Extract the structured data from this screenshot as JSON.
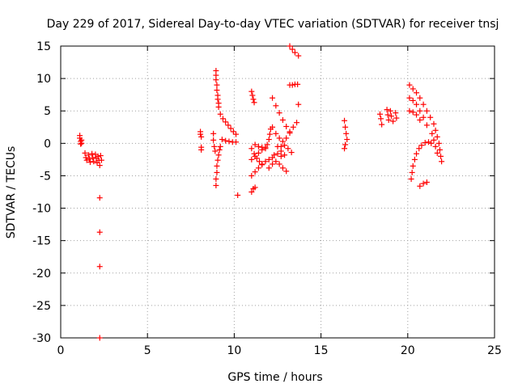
{
  "chart_data": {
    "type": "scatter",
    "title": "Day 229 of 2017, Sidereal Day-to-day VTEC variation (SDTVAR) for receiver tnsj",
    "xlabel": "GPS time / hours",
    "ylabel": "SDTVAR / TECUs",
    "xlim": [
      0,
      25
    ],
    "ylim": [
      -30,
      15
    ],
    "xticks": [
      "0",
      "5",
      "10",
      "15",
      "20",
      "25"
    ],
    "yticks": [
      "15",
      "10",
      "5",
      "0",
      "-5",
      "-10",
      "-15",
      "-20",
      "-25",
      "-30"
    ],
    "grid": true,
    "marker": "+",
    "color": "#ff0000",
    "series": [
      {
        "points": [
          [
            1.1,
            1.2
          ],
          [
            1.1,
            0.8
          ],
          [
            1.15,
            0.3
          ],
          [
            1.15,
            -0.1
          ],
          [
            1.2,
            0.5
          ],
          [
            1.2,
            0.0
          ],
          [
            1.4,
            -1.5
          ],
          [
            1.45,
            -2.2
          ],
          [
            1.5,
            -2.6
          ],
          [
            1.6,
            -1.8
          ],
          [
            1.65,
            -2.4
          ],
          [
            1.7,
            -2.9
          ],
          [
            1.8,
            -1.6
          ],
          [
            1.85,
            -2.2
          ],
          [
            1.9,
            -2.8
          ],
          [
            2.0,
            -1.7
          ],
          [
            2.05,
            -2.3
          ],
          [
            2.1,
            -3.0
          ],
          [
            2.15,
            -2.0
          ],
          [
            2.2,
            -2.6
          ],
          [
            2.25,
            -3.4
          ],
          [
            2.3,
            -1.9
          ],
          [
            2.35,
            -2.6
          ],
          [
            2.25,
            -8.4
          ],
          [
            2.25,
            -13.7
          ],
          [
            2.25,
            -19.0
          ],
          [
            2.25,
            -30.0
          ],
          [
            8.05,
            1.8
          ],
          [
            8.05,
            1.4
          ],
          [
            8.1,
            1.0
          ],
          [
            8.1,
            -0.6
          ],
          [
            8.1,
            -1.0
          ],
          [
            8.95,
            11.2
          ],
          [
            8.95,
            10.5
          ],
          [
            8.95,
            9.8
          ],
          [
            9.0,
            9.0
          ],
          [
            9.0,
            8.2
          ],
          [
            9.05,
            7.4
          ],
          [
            9.05,
            6.8
          ],
          [
            9.1,
            6.2
          ],
          [
            9.1,
            5.6
          ],
          [
            8.95,
            -6.5
          ],
          [
            8.95,
            -5.5
          ],
          [
            9.0,
            -4.5
          ],
          [
            9.0,
            -3.5
          ],
          [
            9.05,
            -2.6
          ],
          [
            9.1,
            -1.8
          ],
          [
            9.15,
            -1.0
          ],
          [
            9.2,
            -0.5
          ],
          [
            8.8,
            1.5
          ],
          [
            8.8,
            0.5
          ],
          [
            8.85,
            -0.5
          ],
          [
            8.9,
            -1.2
          ],
          [
            9.2,
            4.5
          ],
          [
            9.35,
            3.8
          ],
          [
            9.5,
            3.3
          ],
          [
            9.65,
            2.8
          ],
          [
            9.8,
            2.3
          ],
          [
            9.95,
            1.8
          ],
          [
            10.1,
            1.4
          ],
          [
            9.3,
            0.6
          ],
          [
            9.5,
            0.4
          ],
          [
            9.7,
            0.3
          ],
          [
            9.9,
            0.2
          ],
          [
            10.1,
            0.2
          ],
          [
            10.2,
            -8.0
          ],
          [
            11.0,
            -7.5
          ],
          [
            11.1,
            -7.0
          ],
          [
            11.2,
            -6.8
          ],
          [
            11.0,
            8.0
          ],
          [
            11.05,
            7.4
          ],
          [
            11.1,
            6.8
          ],
          [
            11.15,
            6.3
          ],
          [
            11.0,
            -0.8
          ],
          [
            11.15,
            -1.6
          ],
          [
            11.3,
            -2.3
          ],
          [
            11.45,
            -2.8
          ],
          [
            11.6,
            -3.2
          ],
          [
            11.2,
            -0.2
          ],
          [
            11.4,
            -0.5
          ],
          [
            11.6,
            -0.6
          ],
          [
            11.8,
            -0.6
          ],
          [
            11.0,
            -5.0
          ],
          [
            11.2,
            -4.4
          ],
          [
            11.4,
            -3.8
          ],
          [
            11.6,
            -3.3
          ],
          [
            11.8,
            -2.8
          ],
          [
            11.0,
            -2.5
          ],
          [
            11.2,
            -2.0
          ],
          [
            11.4,
            -1.5
          ],
          [
            11.6,
            -1.0
          ],
          [
            11.8,
            -0.8
          ],
          [
            11.9,
            -0.2
          ],
          [
            12.0,
            0.6
          ],
          [
            12.05,
            1.4
          ],
          [
            12.1,
            2.2
          ],
          [
            12.0,
            -3.8
          ],
          [
            12.2,
            -3.2
          ],
          [
            12.4,
            -2.8
          ],
          [
            12.6,
            -3.2
          ],
          [
            12.8,
            -3.8
          ],
          [
            13.0,
            -4.3
          ],
          [
            12.3,
            -1.8
          ],
          [
            12.5,
            -1.6
          ],
          [
            12.7,
            -2.0
          ],
          [
            12.0,
            -2.5
          ],
          [
            12.2,
            -2.2
          ],
          [
            12.2,
            2.5
          ],
          [
            12.4,
            1.5
          ],
          [
            12.6,
            0.8
          ],
          [
            12.8,
            0.3
          ],
          [
            13.0,
            0.8
          ],
          [
            13.2,
            1.6
          ],
          [
            13.4,
            2.5
          ],
          [
            13.6,
            3.2
          ],
          [
            12.2,
            7.0
          ],
          [
            12.4,
            5.8
          ],
          [
            12.6,
            4.7
          ],
          [
            12.8,
            3.6
          ],
          [
            13.0,
            2.6
          ],
          [
            13.2,
            1.8
          ],
          [
            12.7,
            -0.5
          ],
          [
            12.9,
            -0.3
          ],
          [
            13.1,
            -0.8
          ],
          [
            13.3,
            -1.4
          ],
          [
            12.5,
            -0.5
          ],
          [
            12.7,
            -1.2
          ],
          [
            12.9,
            -1.8
          ],
          [
            13.2,
            15.0
          ],
          [
            13.35,
            14.5
          ],
          [
            13.5,
            14.0
          ],
          [
            13.7,
            13.5
          ],
          [
            13.2,
            9.0
          ],
          [
            13.35,
            9.0
          ],
          [
            13.5,
            9.1
          ],
          [
            13.65,
            9.1
          ],
          [
            13.7,
            6.0
          ],
          [
            16.35,
            3.5
          ],
          [
            16.4,
            2.5
          ],
          [
            16.45,
            1.5
          ],
          [
            16.5,
            0.6
          ],
          [
            16.4,
            -0.2
          ],
          [
            16.35,
            -0.8
          ],
          [
            18.4,
            4.5
          ],
          [
            18.45,
            3.8
          ],
          [
            18.5,
            2.9
          ],
          [
            18.8,
            5.2
          ],
          [
            18.85,
            4.4
          ],
          [
            18.9,
            3.6
          ],
          [
            19.0,
            5.0
          ],
          [
            19.05,
            4.2
          ],
          [
            19.15,
            3.4
          ],
          [
            19.3,
            4.7
          ],
          [
            19.35,
            3.9
          ],
          [
            20.1,
            9.0
          ],
          [
            20.3,
            8.4
          ],
          [
            20.5,
            7.8
          ],
          [
            20.7,
            7.0
          ],
          [
            20.9,
            6.0
          ],
          [
            21.1,
            5.0
          ],
          [
            21.3,
            4.0
          ],
          [
            21.5,
            3.0
          ],
          [
            21.6,
            2.0
          ],
          [
            21.7,
            1.0
          ],
          [
            21.8,
            0.0
          ],
          [
            21.85,
            -1.0
          ],
          [
            21.9,
            -2.0
          ],
          [
            21.95,
            -2.8
          ],
          [
            20.1,
            7.0
          ],
          [
            20.3,
            6.6
          ],
          [
            20.5,
            6.0
          ],
          [
            20.7,
            5.0
          ],
          [
            20.9,
            4.0
          ],
          [
            21.1,
            2.8
          ],
          [
            20.1,
            5.0
          ],
          [
            20.3,
            4.8
          ],
          [
            20.5,
            4.4
          ],
          [
            20.7,
            3.6
          ],
          [
            21.4,
            1.5
          ],
          [
            21.5,
            0.5
          ],
          [
            21.6,
            -0.5
          ],
          [
            21.7,
            -1.5
          ],
          [
            20.2,
            -5.5
          ],
          [
            20.25,
            -4.5
          ],
          [
            20.3,
            -3.5
          ],
          [
            20.4,
            -2.5
          ],
          [
            20.5,
            -1.6
          ],
          [
            20.65,
            -0.8
          ],
          [
            20.8,
            -0.3
          ],
          [
            21.0,
            0.1
          ],
          [
            21.2,
            0.2
          ],
          [
            21.35,
            0.0
          ],
          [
            20.7,
            -6.6
          ],
          [
            20.9,
            -6.2
          ],
          [
            21.1,
            -6.0
          ]
        ]
      }
    ]
  }
}
